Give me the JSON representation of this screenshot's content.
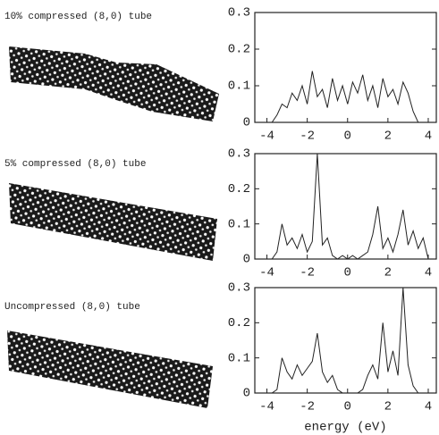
{
  "chart_data": [
    {
      "type": "line",
      "title": "10% compressed (8,0) tube",
      "color": "#222222",
      "x": [
        -4.5,
        -4.25,
        -4,
        -3.75,
        -3.5,
        -3.25,
        -3,
        -2.75,
        -2.5,
        -2.25,
        -2,
        -1.75,
        -1.5,
        -1.25,
        -1,
        -0.75,
        -0.5,
        -0.25,
        0,
        0.25,
        0.5,
        0.75,
        1,
        1.25,
        1.5,
        1.75,
        2,
        2.25,
        2.5,
        2.75,
        3,
        3.25,
        3.5,
        3.75,
        4,
        4.25
      ],
      "values": [
        0,
        0,
        0,
        0,
        0.02,
        0.05,
        0.04,
        0.08,
        0.06,
        0.1,
        0.05,
        0.14,
        0.07,
        0.09,
        0.04,
        0.12,
        0.06,
        0.1,
        0.05,
        0.11,
        0.08,
        0.13,
        0.06,
        0.1,
        0.04,
        0.12,
        0.07,
        0.09,
        0.05,
        0.11,
        0.08,
        0.03,
        0,
        0,
        0,
        0
      ],
      "xlim": [
        -4.6,
        4.4
      ],
      "ylim": [
        0,
        0.3
      ],
      "xticks": [
        -4,
        -2,
        0,
        2,
        4
      ],
      "yticks": [
        0,
        0.1,
        0.2,
        0.3
      ]
    },
    {
      "type": "line",
      "title": "5% compressed (8,0) tube",
      "color": "#222222",
      "x": [
        -4.5,
        -4.25,
        -4,
        -3.75,
        -3.5,
        -3.25,
        -3,
        -2.75,
        -2.5,
        -2.25,
        -2,
        -1.75,
        -1.5,
        -1.25,
        -1,
        -0.75,
        -0.5,
        -0.25,
        0,
        0.25,
        0.5,
        0.75,
        1,
        1.25,
        1.5,
        1.75,
        2,
        2.25,
        2.5,
        2.75,
        3,
        3.25,
        3.5,
        3.75,
        4,
        4.25
      ],
      "values": [
        0,
        0,
        0,
        0,
        0.02,
        0.1,
        0.04,
        0.06,
        0.03,
        0.07,
        0.02,
        0.05,
        0.3,
        0.04,
        0.06,
        0.01,
        0,
        0.01,
        0,
        0.01,
        0,
        0.01,
        0.02,
        0.07,
        0.15,
        0.03,
        0.06,
        0.02,
        0.07,
        0.14,
        0.04,
        0.08,
        0.03,
        0.06,
        0,
        0
      ],
      "xlim": [
        -4.6,
        4.4
      ],
      "ylim": [
        0,
        0.3
      ],
      "xticks": [
        -4,
        -2,
        0,
        2,
        4
      ],
      "yticks": [
        0,
        0.1,
        0.2,
        0.3
      ]
    },
    {
      "type": "line",
      "title": "Uncompressed (8,0) tube",
      "color": "#222222",
      "x_label": "energy (eV)",
      "x": [
        -4.5,
        -4.25,
        -4,
        -3.75,
        -3.5,
        -3.25,
        -3,
        -2.75,
        -2.5,
        -2.25,
        -2,
        -1.75,
        -1.5,
        -1.25,
        -1,
        -0.75,
        -0.5,
        -0.25,
        0,
        0.25,
        0.5,
        0.75,
        1,
        1.25,
        1.5,
        1.75,
        2,
        2.25,
        2.5,
        2.75,
        3,
        3.25,
        3.5,
        3.75,
        4,
        4.25
      ],
      "values": [
        0,
        0,
        0,
        0,
        0.01,
        0.1,
        0.06,
        0.04,
        0.08,
        0.05,
        0.07,
        0.09,
        0.17,
        0.06,
        0.03,
        0.05,
        0.01,
        0,
        0,
        0,
        0,
        0.01,
        0.05,
        0.08,
        0.04,
        0.2,
        0.06,
        0.12,
        0.05,
        0.3,
        0.08,
        0.02,
        0,
        0,
        0,
        0
      ],
      "xlim": [
        -4.6,
        4.4
      ],
      "ylim": [
        0,
        0.3
      ],
      "xticks": [
        -4,
        -2,
        0,
        2,
        4
      ],
      "yticks": [
        0,
        0.1,
        0.2,
        0.3
      ]
    }
  ]
}
